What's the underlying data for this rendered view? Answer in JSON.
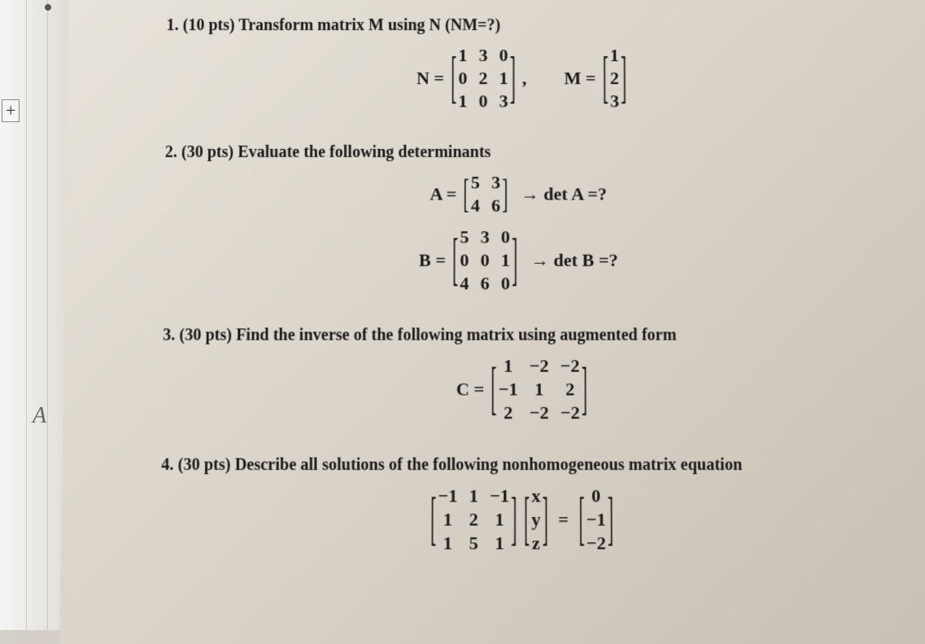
{
  "problems": {
    "p1": {
      "number": "1.",
      "points": "(10 pts)",
      "prompt": "Transform matrix M using N (NM=?)",
      "N_label": "N =",
      "N": [
        [
          "1",
          "3",
          "0"
        ],
        [
          "0",
          "2",
          "1"
        ],
        [
          "1",
          "0",
          "3"
        ]
      ],
      "comma": ",",
      "M_label": "M =",
      "M": [
        [
          "1"
        ],
        [
          "2"
        ],
        [
          "3"
        ]
      ]
    },
    "p2": {
      "number": "2.",
      "points": "(30 pts)",
      "prompt": "Evaluate the following determinants",
      "A_label": "A =",
      "A": [
        [
          "5",
          "3"
        ],
        [
          "4",
          "6"
        ]
      ],
      "A_arrow": "→ det A =?",
      "B_label": "B =",
      "B": [
        [
          "5",
          "3",
          "0"
        ],
        [
          "0",
          "0",
          "1"
        ],
        [
          "4",
          "6",
          "0"
        ]
      ],
      "B_arrow": "→ det B =?"
    },
    "p3": {
      "number": "3.",
      "points": "(30 pts)",
      "prompt": "Find the inverse of the following matrix using augmented form",
      "C_label": "C =",
      "C": [
        [
          "1",
          "−2",
          "−2"
        ],
        [
          "−1",
          "1",
          "2"
        ],
        [
          "2",
          "−2",
          "−2"
        ]
      ]
    },
    "p4": {
      "number": "4.",
      "points": "(30 pts)",
      "prompt": "Describe all solutions of the following nonhomogeneous matrix equation",
      "coef": [
        [
          "−1",
          "1",
          "−1"
        ],
        [
          "1",
          "2",
          "1"
        ],
        [
          "1",
          "5",
          "1"
        ]
      ],
      "vars": [
        [
          "x"
        ],
        [
          "y"
        ],
        [
          "z"
        ]
      ],
      "eq": "=",
      "rhs": [
        [
          "0"
        ],
        [
          "−1"
        ],
        [
          "−2"
        ]
      ]
    }
  },
  "style": {
    "text_color": "#1a1a1a",
    "font_family": "Times New Roman",
    "prompt_fontsize": 20,
    "equation_fontsize": 22,
    "bracket_scale_2row": 2.2,
    "bracket_scale_3row": 3.2
  },
  "margin_marks": {
    "plus": "+",
    "letter": "A"
  }
}
